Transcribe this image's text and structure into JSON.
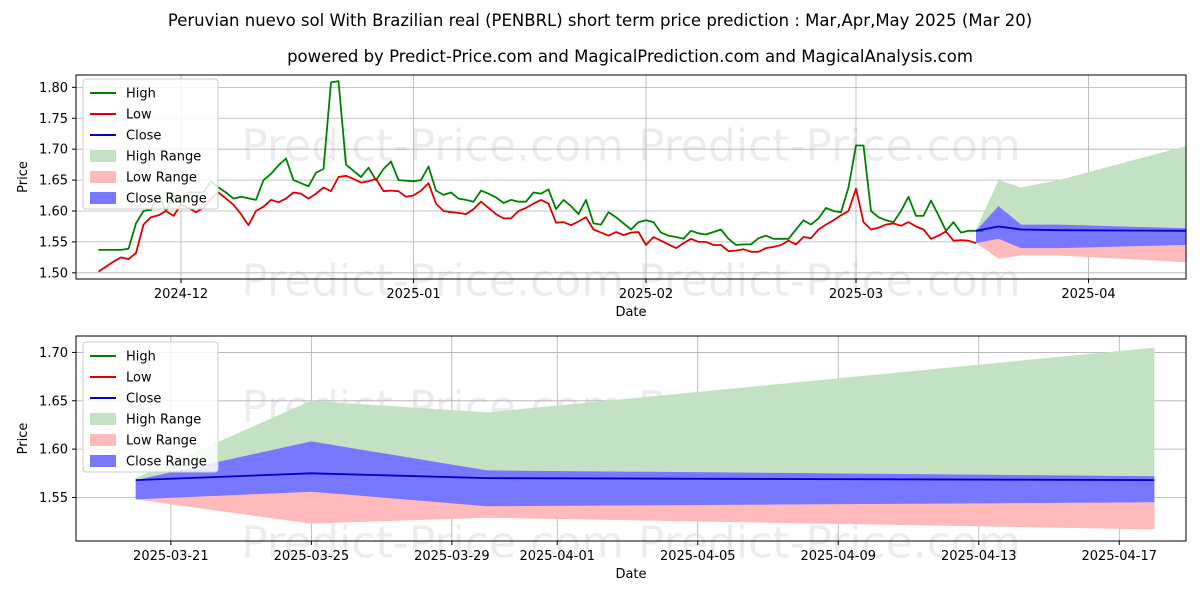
{
  "title": "Peruvian nuevo sol With Brazilian real (PENBRL) short term price prediction : Mar,Apr,May 2025 (Mar 20)",
  "subtitle": "powered by Predict-Price.com and MagicalPrediction.com and MagicalAnalysis.com",
  "watermark": "Predict-Price.com",
  "colors": {
    "high": "#008000",
    "low": "#dd0000",
    "close": "#0000cc",
    "high_range": "#c3e2c3",
    "low_range": "#ffbbbb",
    "close_range": "#7777ff"
  },
  "chart_data": [
    {
      "type": "line",
      "name": "history-and-forecast",
      "xlabel": "Date",
      "ylabel": "Price",
      "ylim": [
        1.49,
        1.82
      ],
      "xlim": [
        -9,
        139
      ],
      "x_ticks": [
        {
          "x": 5,
          "label": "2024-12"
        },
        {
          "x": 36,
          "label": "2025-01"
        },
        {
          "x": 67,
          "label": "2025-02"
        },
        {
          "x": 95,
          "label": "2025-03"
        },
        {
          "x": 126,
          "label": "2025-04"
        }
      ],
      "y_ticks": [
        {
          "v": 1.5,
          "label": "1.50"
        },
        {
          "v": 1.55,
          "label": "1.55"
        },
        {
          "v": 1.6,
          "label": "1.60"
        },
        {
          "v": 1.65,
          "label": "1.65"
        },
        {
          "v": 1.7,
          "label": "1.70"
        },
        {
          "v": 1.75,
          "label": "1.75"
        },
        {
          "v": 1.8,
          "label": "1.80"
        }
      ],
      "grid": true,
      "legend_position": "top-left",
      "legend": [
        "High",
        "Low",
        "Close",
        "High Range",
        "Low Range",
        "Close Range"
      ],
      "high": [
        [
          -6,
          1.537
        ],
        [
          -3,
          1.537
        ],
        [
          -2,
          1.539
        ],
        [
          -1,
          1.58
        ],
        [
          0,
          1.6
        ],
        [
          1,
          1.602
        ],
        [
          2,
          1.625
        ],
        [
          3,
          1.6
        ],
        [
          4,
          1.625
        ],
        [
          5,
          1.61
        ],
        [
          6,
          1.63
        ],
        [
          7,
          1.63
        ],
        [
          8,
          1.63
        ],
        [
          9,
          1.648
        ],
        [
          10,
          1.638
        ],
        [
          11,
          1.63
        ],
        [
          12,
          1.62
        ],
        [
          13,
          1.623
        ],
        [
          15,
          1.618
        ],
        [
          16,
          1.65
        ],
        [
          17,
          1.66
        ],
        [
          18,
          1.674
        ],
        [
          19,
          1.685
        ],
        [
          20,
          1.65
        ],
        [
          21,
          1.645
        ],
        [
          22,
          1.64
        ],
        [
          23,
          1.662
        ],
        [
          24,
          1.668
        ],
        [
          25,
          1.808
        ],
        [
          26,
          1.81
        ],
        [
          27,
          1.675
        ],
        [
          28,
          1.665
        ],
        [
          29,
          1.655
        ],
        [
          30,
          1.67
        ],
        [
          31,
          1.65
        ],
        [
          32,
          1.668
        ],
        [
          33,
          1.68
        ],
        [
          34,
          1.65
        ],
        [
          36,
          1.648
        ],
        [
          37,
          1.65
        ],
        [
          38,
          1.672
        ],
        [
          39,
          1.633
        ],
        [
          40,
          1.626
        ],
        [
          41,
          1.63
        ],
        [
          42,
          1.62
        ],
        [
          43,
          1.618
        ],
        [
          44,
          1.615
        ],
        [
          45,
          1.633
        ],
        [
          46,
          1.628
        ],
        [
          47,
          1.622
        ],
        [
          48,
          1.613
        ],
        [
          49,
          1.618
        ],
        [
          50,
          1.615
        ],
        [
          51,
          1.615
        ],
        [
          52,
          1.63
        ],
        [
          53,
          1.628
        ],
        [
          54,
          1.635
        ],
        [
          55,
          1.603
        ],
        [
          56,
          1.618
        ],
        [
          57,
          1.608
        ],
        [
          58,
          1.595
        ],
        [
          59,
          1.618
        ],
        [
          60,
          1.58
        ],
        [
          61,
          1.578
        ],
        [
          62,
          1.598
        ],
        [
          63,
          1.59
        ],
        [
          65,
          1.57
        ],
        [
          66,
          1.582
        ],
        [
          67,
          1.585
        ],
        [
          68,
          1.582
        ],
        [
          69,
          1.565
        ],
        [
          70,
          1.56
        ],
        [
          71,
          1.558
        ],
        [
          72,
          1.555
        ],
        [
          73,
          1.568
        ],
        [
          74,
          1.564
        ],
        [
          75,
          1.562
        ],
        [
          76,
          1.566
        ],
        [
          77,
          1.57
        ],
        [
          78,
          1.555
        ],
        [
          79,
          1.545
        ],
        [
          80,
          1.546
        ],
        [
          81,
          1.546
        ],
        [
          82,
          1.556
        ],
        [
          83,
          1.56
        ],
        [
          84,
          1.555
        ],
        [
          85,
          1.555
        ],
        [
          86,
          1.555
        ],
        [
          87,
          1.57
        ],
        [
          88,
          1.585
        ],
        [
          89,
          1.578
        ],
        [
          90,
          1.588
        ],
        [
          91,
          1.605
        ],
        [
          92,
          1.6
        ],
        [
          93,
          1.598
        ],
        [
          94,
          1.638
        ],
        [
          95,
          1.706
        ],
        [
          96,
          1.706
        ],
        [
          97,
          1.6
        ],
        [
          98,
          1.59
        ],
        [
          99,
          1.585
        ],
        [
          100,
          1.582
        ],
        [
          101,
          1.6
        ],
        [
          102,
          1.623
        ],
        [
          103,
          1.592
        ],
        [
          104,
          1.592
        ],
        [
          105,
          1.617
        ],
        [
          106,
          1.593
        ],
        [
          107,
          1.568
        ],
        [
          108,
          1.582
        ],
        [
          109,
          1.565
        ],
        [
          110,
          1.568
        ],
        [
          111,
          1.568
        ],
        [
          112,
          1.568
        ]
      ],
      "low": [
        [
          -6,
          1.502
        ],
        [
          -5,
          1.51
        ],
        [
          -4,
          1.518
        ],
        [
          -3,
          1.525
        ],
        [
          -2,
          1.522
        ],
        [
          -1,
          1.532
        ],
        [
          0,
          1.578
        ],
        [
          1,
          1.59
        ],
        [
          2,
          1.593
        ],
        [
          3,
          1.6
        ],
        [
          4,
          1.592
        ],
        [
          5,
          1.61
        ],
        [
          6,
          1.605
        ],
        [
          7,
          1.598
        ],
        [
          8,
          1.605
        ],
        [
          9,
          1.62
        ],
        [
          10,
          1.63
        ],
        [
          11,
          1.62
        ],
        [
          12,
          1.61
        ],
        [
          13,
          1.595
        ],
        [
          14,
          1.577
        ],
        [
          15,
          1.6
        ],
        [
          16,
          1.607
        ],
        [
          17,
          1.618
        ],
        [
          18,
          1.614
        ],
        [
          19,
          1.62
        ],
        [
          20,
          1.63
        ],
        [
          21,
          1.628
        ],
        [
          22,
          1.62
        ],
        [
          23,
          1.628
        ],
        [
          24,
          1.638
        ],
        [
          25,
          1.632
        ],
        [
          26,
          1.655
        ],
        [
          27,
          1.657
        ],
        [
          28,
          1.652
        ],
        [
          29,
          1.646
        ],
        [
          30,
          1.648
        ],
        [
          31,
          1.652
        ],
        [
          32,
          1.632
        ],
        [
          33,
          1.633
        ],
        [
          34,
          1.632
        ],
        [
          35,
          1.623
        ],
        [
          36,
          1.625
        ],
        [
          37,
          1.633
        ],
        [
          38,
          1.645
        ],
        [
          39,
          1.612
        ],
        [
          40,
          1.6
        ],
        [
          41,
          1.598
        ],
        [
          42,
          1.597
        ],
        [
          43,
          1.595
        ],
        [
          44,
          1.603
        ],
        [
          45,
          1.615
        ],
        [
          46,
          1.605
        ],
        [
          47,
          1.595
        ],
        [
          48,
          1.588
        ],
        [
          49,
          1.588
        ],
        [
          50,
          1.6
        ],
        [
          51,
          1.605
        ],
        [
          52,
          1.612
        ],
        [
          53,
          1.618
        ],
        [
          54,
          1.612
        ],
        [
          55,
          1.581
        ],
        [
          56,
          1.582
        ],
        [
          57,
          1.577
        ],
        [
          58,
          1.583
        ],
        [
          59,
          1.59
        ],
        [
          60,
          1.57
        ],
        [
          61,
          1.565
        ],
        [
          62,
          1.56
        ],
        [
          63,
          1.566
        ],
        [
          64,
          1.561
        ],
        [
          65,
          1.565
        ],
        [
          66,
          1.566
        ],
        [
          67,
          1.545
        ],
        [
          68,
          1.558
        ],
        [
          69,
          1.552
        ],
        [
          70,
          1.546
        ],
        [
          71,
          1.54
        ],
        [
          72,
          1.548
        ],
        [
          73,
          1.555
        ],
        [
          74,
          1.55
        ],
        [
          75,
          1.55
        ],
        [
          76,
          1.545
        ],
        [
          77,
          1.545
        ],
        [
          78,
          1.535
        ],
        [
          79,
          1.536
        ],
        [
          80,
          1.538
        ],
        [
          81,
          1.534
        ],
        [
          82,
          1.534
        ],
        [
          83,
          1.54
        ],
        [
          84,
          1.542
        ],
        [
          85,
          1.545
        ],
        [
          86,
          1.552
        ],
        [
          87,
          1.546
        ],
        [
          88,
          1.558
        ],
        [
          89,
          1.556
        ],
        [
          90,
          1.57
        ],
        [
          91,
          1.578
        ],
        [
          92,
          1.585
        ],
        [
          93,
          1.593
        ],
        [
          94,
          1.6
        ],
        [
          95,
          1.636
        ],
        [
          96,
          1.582
        ],
        [
          97,
          1.57
        ],
        [
          98,
          1.573
        ],
        [
          99,
          1.578
        ],
        [
          100,
          1.58
        ],
        [
          101,
          1.576
        ],
        [
          102,
          1.582
        ],
        [
          103,
          1.575
        ],
        [
          104,
          1.57
        ],
        [
          105,
          1.555
        ],
        [
          106,
          1.56
        ],
        [
          107,
          1.567
        ],
        [
          108,
          1.552
        ],
        [
          109,
          1.553
        ],
        [
          110,
          1.552
        ],
        [
          111,
          1.548
        ]
      ],
      "forecast_x": [
        111,
        114,
        117,
        122,
        139
      ],
      "forecast_high_range": [
        [
          1.568,
          1.57
        ],
        [
          1.57,
          1.65
        ],
        [
          1.568,
          1.638
        ],
        [
          1.568,
          1.65
        ],
        [
          1.568,
          1.705
        ]
      ],
      "forecast_low_range": [
        [
          1.548,
          1.565
        ],
        [
          1.523,
          1.558
        ],
        [
          1.528,
          1.542
        ],
        [
          1.528,
          1.542
        ],
        [
          1.517,
          1.545
        ]
      ],
      "forecast_close_range": [
        [
          1.548,
          1.568
        ],
        [
          1.555,
          1.608
        ],
        [
          1.54,
          1.578
        ],
        [
          1.54,
          1.578
        ],
        [
          1.545,
          1.572
        ]
      ],
      "forecast_close": [
        1.568,
        1.575,
        1.57,
        1.569,
        1.568
      ]
    },
    {
      "type": "area",
      "name": "forecast-zoom",
      "xlabel": "Date",
      "ylabel": "Price",
      "ylim": [
        1.505,
        1.717
      ],
      "xlim": [
        -1.7,
        29.9
      ],
      "x_ticks": [
        {
          "x": 1,
          "label": "2025-03-21"
        },
        {
          "x": 5,
          "label": "2025-03-25"
        },
        {
          "x": 9,
          "label": "2025-03-29"
        },
        {
          "x": 12,
          "label": "2025-04-01"
        },
        {
          "x": 16,
          "label": "2025-04-05"
        },
        {
          "x": 20,
          "label": "2025-04-09"
        },
        {
          "x": 24,
          "label": "2025-04-13"
        },
        {
          "x": 28,
          "label": "2025-04-17"
        }
      ],
      "y_ticks": [
        {
          "v": 1.55,
          "label": "1.55"
        },
        {
          "v": 1.6,
          "label": "1.60"
        },
        {
          "v": 1.65,
          "label": "1.65"
        },
        {
          "v": 1.7,
          "label": "1.70"
        }
      ],
      "grid": true,
      "legend_position": "top-left",
      "legend": [
        "High",
        "Low",
        "Close",
        "High Range",
        "Low Range",
        "Close Range"
      ],
      "x": [
        0,
        5,
        10,
        29
      ],
      "high_range": [
        [
          1.568,
          1.57
        ],
        [
          1.57,
          1.65
        ],
        [
          1.57,
          1.638
        ],
        [
          1.57,
          1.705
        ]
      ],
      "low_range": [
        [
          1.548,
          1.565
        ],
        [
          1.523,
          1.558
        ],
        [
          1.529,
          1.542
        ],
        [
          1.517,
          1.545
        ]
      ],
      "close_range": [
        [
          1.548,
          1.568
        ],
        [
          1.556,
          1.608
        ],
        [
          1.541,
          1.578
        ],
        [
          1.545,
          1.572
        ]
      ],
      "close": [
        1.568,
        1.575,
        1.57,
        1.568
      ]
    }
  ]
}
